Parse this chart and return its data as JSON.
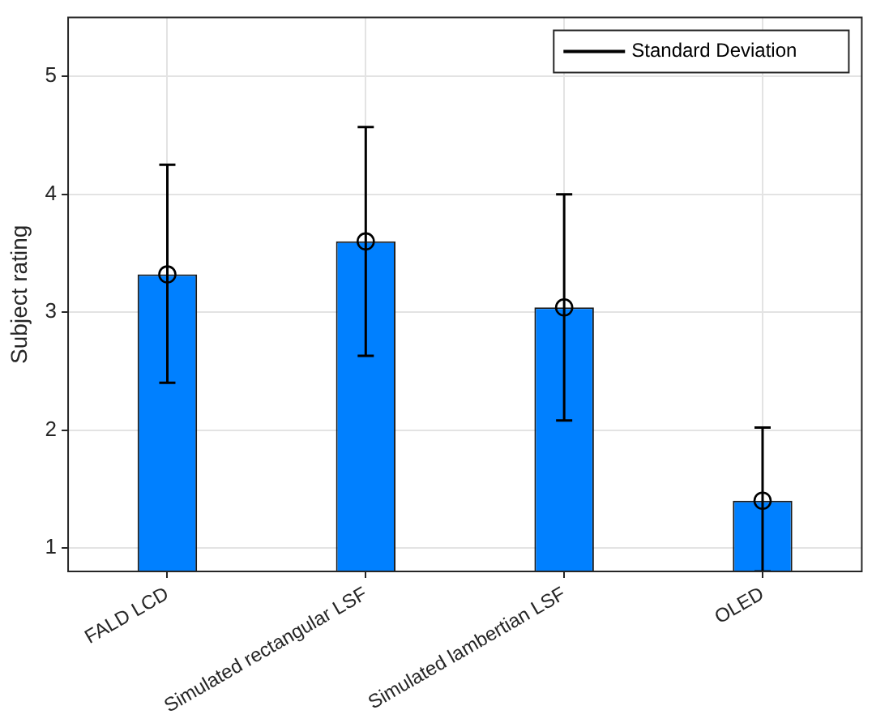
{
  "chart_data": {
    "type": "bar",
    "ylabel": "Subject rating",
    "categories": [
      "FALD LCD",
      "Simulated rectangular LSF",
      "Simulated lambertian LSF",
      "OLED"
    ],
    "series": [
      {
        "color": "#0080ff",
        "values": [
          3.32,
          3.6,
          3.04,
          1.4
        ]
      },
      {
        "type": "scatter",
        "name": "Standard Deviation",
        "color": "#000000",
        "values": [
          3.32,
          3.6,
          3.04,
          1.4
        ],
        "errors": [
          [
            2.4,
            4.25
          ],
          [
            2.63,
            4.57
          ],
          [
            2.08,
            4.0
          ],
          [
            0.8,
            2.02
          ]
        ]
      }
    ],
    "ylim": [
      0.8,
      5.5
    ],
    "yticks": [
      1,
      2,
      3,
      4,
      5
    ],
    "grid": true,
    "legend": "top right",
    "marker": "circle"
  }
}
